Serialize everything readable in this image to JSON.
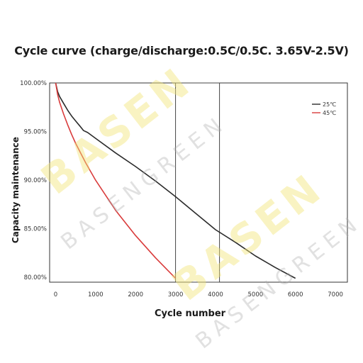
{
  "title": "Cycle curve (charge/discharge:0.5C/0.5C. 3.65V-2.5V)",
  "watermark": {
    "brand": "BASEN",
    "sub": "BASENGREEN"
  },
  "colors": {
    "series_25": "#2b2b2b",
    "series_45": "#d93b3b",
    "axis": "#333333",
    "watermark_brand": "#f2e478"
  },
  "chart_data": {
    "type": "line",
    "title": "Cycle curve (charge/discharge:0.5C/0.5C. 3.65V-2.5V)",
    "xlabel": "Cycle number",
    "ylabel": "Capacity maintenance",
    "xlim": [
      -150,
      7300
    ],
    "ylim": [
      79.5,
      100
    ],
    "xticks": [
      0,
      1000,
      2000,
      3000,
      4000,
      5000,
      6000,
      7000
    ],
    "xtick_labels": [
      "0",
      "1000",
      "2000",
      "3000",
      "4000",
      "5000",
      "6000",
      "7000"
    ],
    "yticks": [
      100,
      95,
      90,
      85,
      80
    ],
    "ytick_labels": [
      "100.00%",
      "95.00%",
      "90.00%",
      "85.00%",
      "80.00%"
    ],
    "grid": false,
    "legend_position": "top-right",
    "highlight_box_x": [
      3000,
      4100
    ],
    "series": [
      {
        "name": "25℃",
        "color": "#2b2b2b",
        "x": [
          0,
          50,
          100,
          200,
          300,
          400,
          500,
          600,
          700,
          800,
          900,
          1000,
          1500,
          2000,
          2500,
          3000,
          3500,
          4000,
          4500,
          5000,
          5500,
          6000
        ],
        "y": [
          100.0,
          99.1,
          98.6,
          97.9,
          97.2,
          96.6,
          96.1,
          95.6,
          95.1,
          94.9,
          94.6,
          94.3,
          92.8,
          91.4,
          89.9,
          88.3,
          86.6,
          84.9,
          83.6,
          82.2,
          81.0,
          79.9
        ]
      },
      {
        "name": "45℃",
        "color": "#d93b3b",
        "x": [
          0,
          50,
          100,
          200,
          300,
          400,
          500,
          750,
          1000,
          1500,
          2000,
          2500,
          3000
        ],
        "y": [
          100.0,
          98.8,
          98.0,
          96.8,
          95.7,
          94.7,
          93.8,
          91.8,
          90.0,
          86.9,
          84.3,
          82.0,
          79.9
        ]
      }
    ]
  }
}
